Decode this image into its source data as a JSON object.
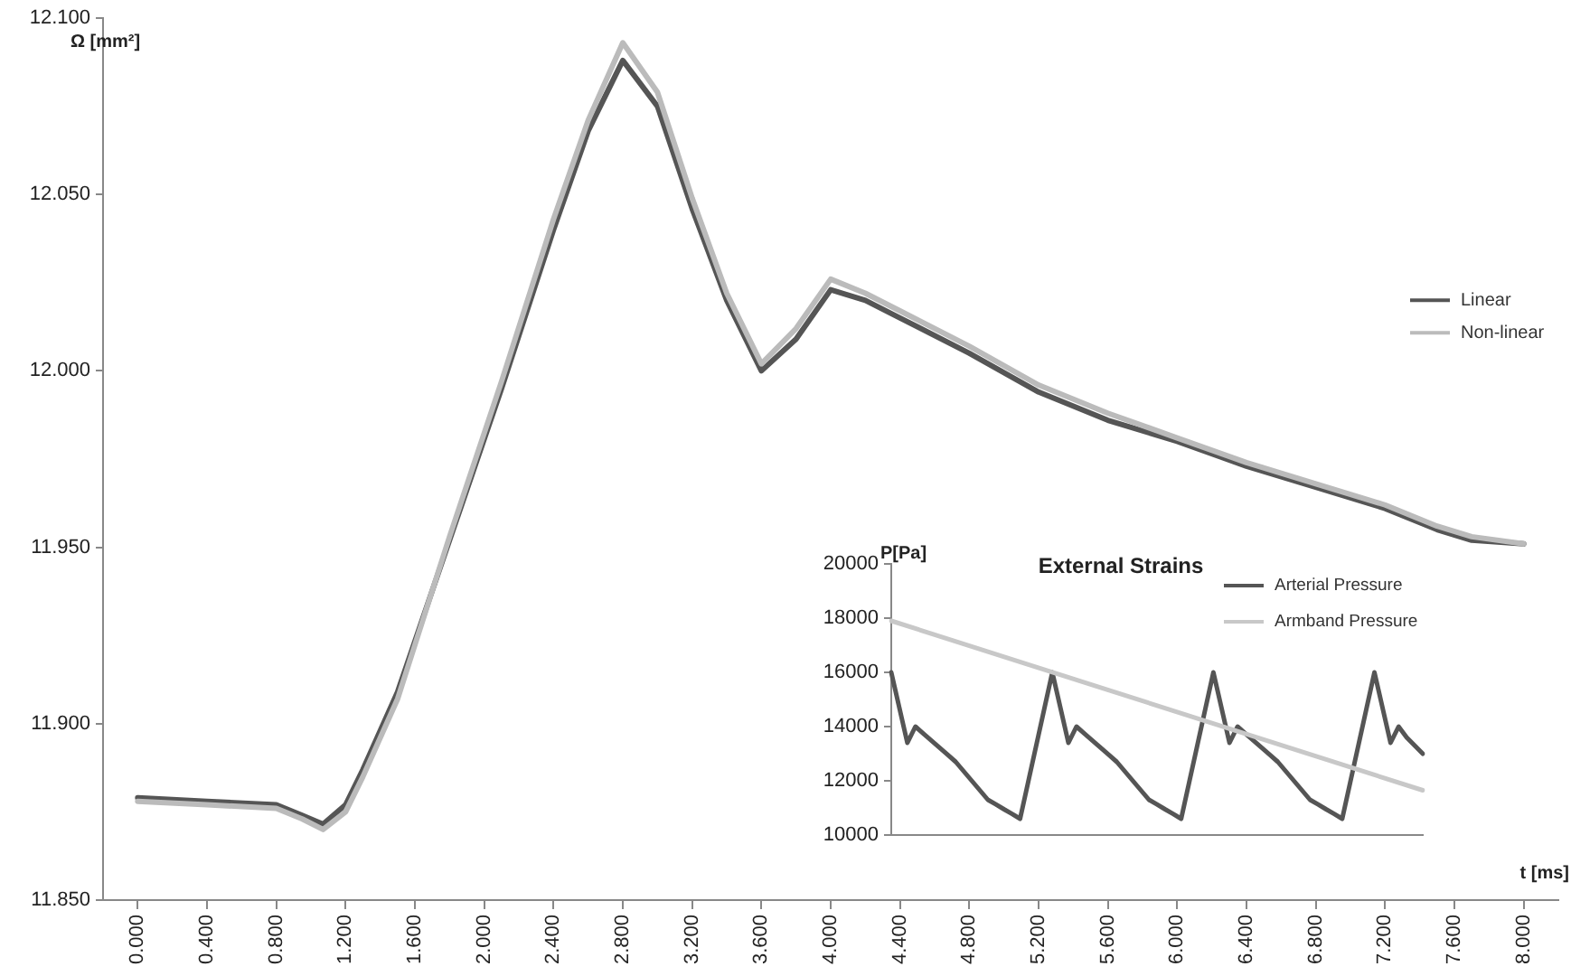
{
  "chart_data": [
    {
      "type": "line",
      "ylabel": "Ω [mm²]",
      "xlabel": "t [ms]",
      "legend": "right",
      "grid": false,
      "marker": "none",
      "line_style": "solid",
      "x": [
        0,
        0.4,
        0.8,
        0.95,
        1.07,
        1.2,
        1.3,
        1.5,
        1.8,
        2.1,
        2.4,
        2.6,
        2.8,
        3.0,
        3.2,
        3.4,
        3.6,
        3.8,
        4.0,
        4.2,
        4.4,
        4.8,
        5.2,
        5.6,
        6.0,
        6.4,
        6.8,
        7.2,
        7.5,
        7.7,
        8.0
      ],
      "xlim": [
        -0.2,
        8.2
      ],
      "xticks": [
        {
          "value": 0,
          "label": "0.000"
        },
        {
          "value": 0.4,
          "label": "0.400"
        },
        {
          "value": 0.8,
          "label": "0.800"
        },
        {
          "value": 1.2,
          "label": "1.200"
        },
        {
          "value": 1.6,
          "label": "1.600"
        },
        {
          "value": 2.0,
          "label": "2.000"
        },
        {
          "value": 2.4,
          "label": "2.400"
        },
        {
          "value": 2.8,
          "label": "2.800"
        },
        {
          "value": 3.2,
          "label": "3.200"
        },
        {
          "value": 3.6,
          "label": "3.600"
        },
        {
          "value": 4.0,
          "label": "4.000"
        },
        {
          "value": 4.4,
          "label": "4.400"
        },
        {
          "value": 4.8,
          "label": "4.800"
        },
        {
          "value": 5.2,
          "label": "5.200"
        },
        {
          "value": 5.6,
          "label": "5.600"
        },
        {
          "value": 6.0,
          "label": "6.000"
        },
        {
          "value": 6.4,
          "label": "6.400"
        },
        {
          "value": 6.8,
          "label": "6.800"
        },
        {
          "value": 7.2,
          "label": "7.200"
        },
        {
          "value": 7.6,
          "label": "7.600"
        },
        {
          "value": 8.0,
          "label": "8.000"
        }
      ],
      "ylim": [
        11.85,
        12.1
      ],
      "yticks": [
        {
          "value": 11.85,
          "label": "11.850"
        },
        {
          "value": 11.9,
          "label": "11.900"
        },
        {
          "value": 11.95,
          "label": "11.950"
        },
        {
          "value": 12.0,
          "label": "12.000"
        },
        {
          "value": 12.05,
          "label": "12.050"
        },
        {
          "value": 12.1,
          "label": "12.100"
        }
      ],
      "series": [
        {
          "name": "Linear",
          "color": "#555555",
          "values": [
            11.879,
            11.878,
            11.877,
            11.874,
            11.8715,
            11.877,
            11.887,
            11.909,
            11.952,
            11.995,
            12.04,
            12.068,
            12.088,
            12.075,
            12.046,
            12.02,
            12.0,
            12.009,
            12.023,
            12.02,
            12.015,
            12.005,
            11.994,
            11.986,
            11.98,
            11.973,
            11.967,
            11.961,
            11.955,
            11.952,
            11.951
          ]
        },
        {
          "name": "Non-linear",
          "color": "#bbbbbb",
          "values": [
            11.878,
            11.877,
            11.876,
            11.873,
            11.87,
            11.875,
            11.885,
            11.907,
            11.953,
            11.997,
            12.043,
            12.071,
            12.093,
            12.079,
            12.049,
            12.022,
            12.002,
            12.012,
            12.026,
            12.022,
            12.017,
            12.007,
            11.996,
            11.988,
            11.981,
            11.974,
            11.968,
            11.962,
            11.956,
            11.953,
            11.951
          ]
        }
      ]
    },
    {
      "type": "line",
      "title": "External Strains",
      "ylabel": "P[Pa]",
      "legend": "top right",
      "grid": false,
      "marker": "none",
      "line_style": "solid",
      "tick_labels": "y",
      "categories": [
        null,
        null,
        null,
        null,
        null,
        null,
        null,
        null,
        null,
        null,
        null,
        null,
        null,
        null,
        null,
        null,
        null,
        null,
        null,
        null,
        null,
        null,
        null,
        null,
        null,
        null,
        null,
        null,
        null,
        null,
        null,
        null,
        null,
        null,
        null,
        null,
        null,
        null,
        null,
        null,
        null,
        null,
        null,
        null,
        null,
        null,
        null,
        null,
        null,
        null,
        null,
        null,
        null,
        null,
        null,
        null,
        null,
        null,
        null,
        null,
        null,
        null,
        null,
        null,
        null,
        null,
        null
      ],
      "ylim": [
        10000,
        20000
      ],
      "yticks": [
        10000,
        12000,
        14000,
        16000,
        18000,
        20000
      ],
      "series": [
        {
          "name": "Arterial Pressure",
          "color": "#555555",
          "values": [
            16000,
            14700,
            13400,
            14000,
            13740,
            13480,
            13220,
            12960,
            12700,
            12350,
            12000,
            11650,
            11300,
            11130,
            10950,
            10780,
            10600,
            11950,
            13300,
            14650,
            16000,
            14700,
            13400,
            14000,
            13740,
            13480,
            13220,
            12960,
            12700,
            12350,
            12000,
            11650,
            11300,
            11130,
            10950,
            10780,
            10600,
            11950,
            13300,
            14650,
            16000,
            14700,
            13400,
            14000,
            13740,
            13480,
            13220,
            12960,
            12700,
            12350,
            12000,
            11650,
            11300,
            11130,
            10950,
            10780,
            10600,
            11950,
            13300,
            14650,
            16000,
            14700,
            13400,
            14000,
            13600,
            13300,
            13000
          ]
        },
        {
          "name": "Armband Pressure",
          "color": "#c8c8c8",
          "values": [
            17900,
            null,
            null,
            null,
            null,
            null,
            null,
            null,
            null,
            null,
            null,
            null,
            null,
            null,
            null,
            null,
            null,
            null,
            null,
            null,
            null,
            null,
            null,
            null,
            null,
            null,
            null,
            null,
            null,
            null,
            null,
            null,
            null,
            null,
            null,
            null,
            null,
            null,
            null,
            null,
            null,
            null,
            null,
            null,
            null,
            null,
            null,
            null,
            null,
            null,
            null,
            null,
            null,
            null,
            null,
            null,
            null,
            null,
            null,
            null,
            null,
            null,
            null,
            null,
            null,
            null,
            11650
          ]
        }
      ]
    }
  ]
}
